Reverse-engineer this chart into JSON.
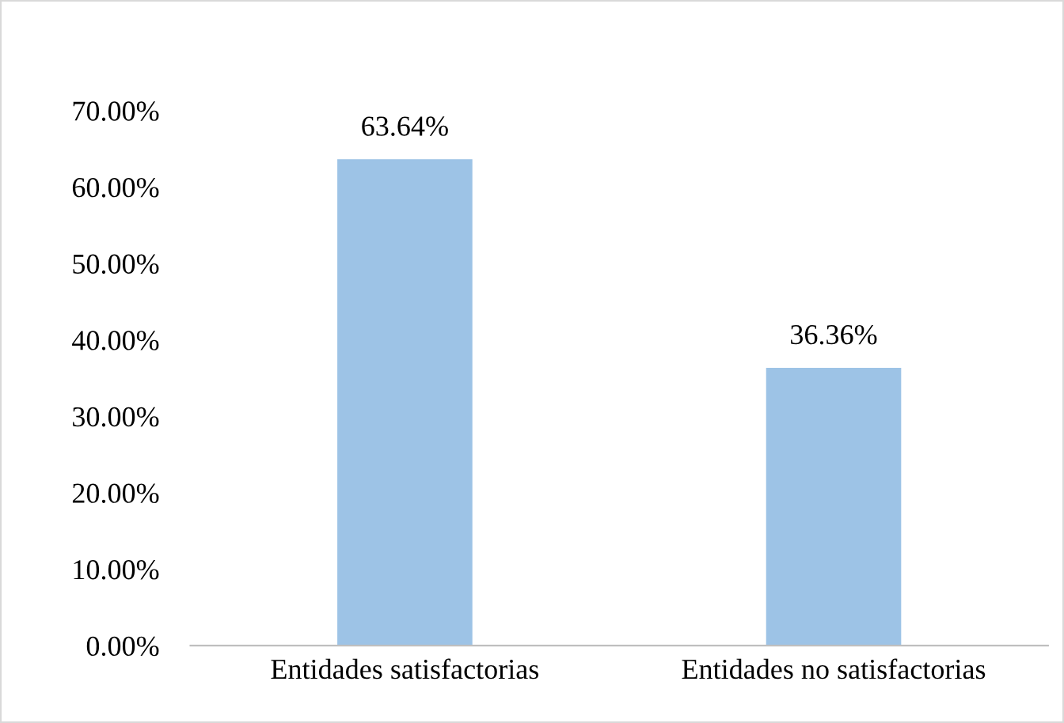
{
  "chart_data": {
    "type": "bar",
    "categories": [
      "Entidades satisfactorias",
      "Entidades no satisfactorias"
    ],
    "values": [
      63.64,
      36.36
    ],
    "color": "#9dc3e6",
    "value_labels": [
      "63.64%",
      "36.36%"
    ],
    "ylim": [
      0,
      70
    ],
    "yticks": [
      {
        "value": 0,
        "label": "0.00%"
      },
      {
        "value": 10,
        "label": "10.00%"
      },
      {
        "value": 20,
        "label": "20.00%"
      },
      {
        "value": 30,
        "label": "30.00%"
      },
      {
        "value": 40,
        "label": "40.00%"
      },
      {
        "value": 50,
        "label": "50.00%"
      },
      {
        "value": 60,
        "label": "60.00%"
      },
      {
        "value": 70,
        "label": "70.00%"
      }
    ],
    "grid": false,
    "legend": false
  }
}
